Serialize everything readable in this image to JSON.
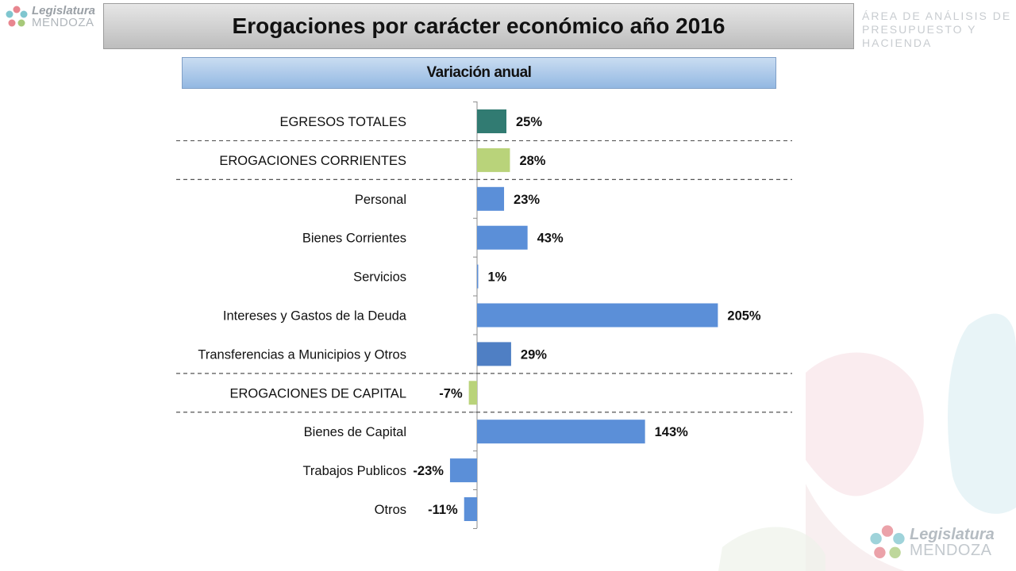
{
  "header": {
    "logo_line1": "Legislatura",
    "logo_line2": "MENDOZA",
    "title": "Erogaciones por carácter económico año 2016",
    "area_line1": "ÁREA DE ANÁLISIS DE",
    "area_line2": "PRESUPUESTO Y HACIENDA"
  },
  "chart_data": {
    "type": "bar",
    "orientation": "horizontal",
    "title": "Variación anual",
    "categories": [
      "EGRESOS TOTALES",
      "EROGACIONES CORRIENTES",
      "Personal",
      "Bienes Corrientes",
      "Servicios",
      "Intereses y Gastos de la Deuda",
      "Transferencias a Municipios y Otros",
      "EROGACIONES DE CAPITAL",
      "Bienes de Capital",
      "Trabajos Publicos",
      "Otros"
    ],
    "values": [
      25,
      28,
      23,
      43,
      1,
      205,
      29,
      -7,
      143,
      -23,
      -11
    ],
    "data_labels": [
      "25%",
      "28%",
      "23%",
      "43%",
      "1%",
      "205%",
      "29%",
      "-7%",
      "143%",
      "-23%",
      "-11%"
    ],
    "bar_colors": [
      "#317b72",
      "#b9d37a",
      "#5b8fd8",
      "#5b8fd8",
      "#5b8fd8",
      "#5b8fd8",
      "#4f7fc4",
      "#b9d37a",
      "#5b8fd8",
      "#5b8fd8",
      "#5b8fd8"
    ],
    "group_separators_after": [
      0,
      1,
      6,
      7
    ],
    "unit": "%"
  },
  "footer": {
    "logo_line1": "Legislatura",
    "logo_line2": "MENDOZA"
  }
}
